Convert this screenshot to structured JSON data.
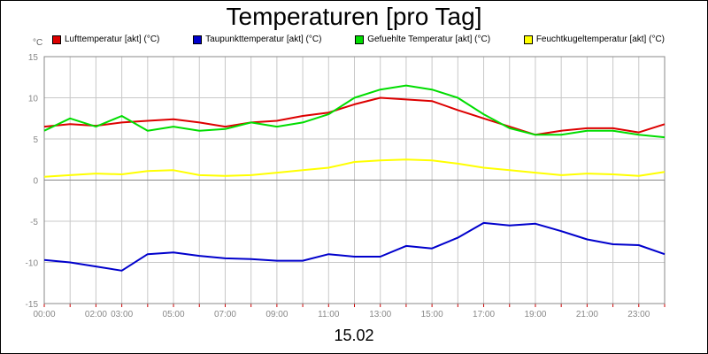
{
  "chart_data": {
    "type": "line",
    "title": "Temperaturen [pro Tag]",
    "unit": "°C",
    "xlabel": "15.02",
    "x_range_hours": [
      0,
      24
    ],
    "ylim": [
      -15,
      15
    ],
    "y_ticks": [
      15,
      10,
      5,
      0,
      -5,
      -10,
      -15
    ],
    "x_tick_labels": [
      {
        "h": 0,
        "label": "00:00"
      },
      {
        "h": 2,
        "label": "02:00"
      },
      {
        "h": 3,
        "label": "03:00"
      },
      {
        "h": 5,
        "label": "05:00"
      },
      {
        "h": 7,
        "label": "07:00"
      },
      {
        "h": 9,
        "label": "09:00"
      },
      {
        "h": 11,
        "label": "11:00"
      },
      {
        "h": 13,
        "label": "13:00"
      },
      {
        "h": 15,
        "label": "15:00"
      },
      {
        "h": 17,
        "label": "17:00"
      },
      {
        "h": 19,
        "label": "19:00"
      },
      {
        "h": 21,
        "label": "21:00"
      },
      {
        "h": 23,
        "label": "23:00"
      }
    ],
    "series": [
      {
        "name": "Lufttemperatur [akt] (°C)",
        "color": "#dd0000",
        "x": [
          0,
          1,
          2,
          3,
          4,
          5,
          6,
          7,
          8,
          9,
          10,
          11,
          12,
          13,
          14,
          15,
          16,
          17,
          18,
          19,
          20,
          21,
          22,
          23,
          24
        ],
        "values": [
          6.5,
          6.8,
          6.6,
          7.0,
          7.2,
          7.4,
          7.0,
          6.5,
          7.0,
          7.2,
          7.8,
          8.2,
          9.2,
          10.0,
          9.8,
          9.6,
          8.5,
          7.5,
          6.5,
          5.5,
          6.0,
          6.3,
          6.3,
          5.8,
          6.8
        ]
      },
      {
        "name": "Taupunkttemperatur [akt] (°C)",
        "color": "#0000cc",
        "x": [
          0,
          1,
          2,
          3,
          4,
          5,
          6,
          7,
          8,
          9,
          10,
          11,
          12,
          13,
          14,
          15,
          16,
          17,
          18,
          19,
          20,
          21,
          22,
          23,
          24
        ],
        "values": [
          -9.7,
          -10.0,
          -10.5,
          -11.0,
          -9.0,
          -8.8,
          -9.2,
          -9.5,
          -9.6,
          -9.8,
          -9.8,
          -9.0,
          -9.3,
          -9.3,
          -8.0,
          -8.3,
          -7.0,
          -5.2,
          -5.5,
          -5.3,
          -6.2,
          -7.2,
          -7.8,
          -7.9,
          -9.0
        ]
      },
      {
        "name": "Gefuehlte Temperatur [akt] (°C)",
        "color": "#00dd00",
        "x": [
          0,
          1,
          2,
          3,
          4,
          5,
          6,
          7,
          8,
          9,
          10,
          11,
          12,
          13,
          14,
          15,
          16,
          17,
          18,
          19,
          20,
          21,
          22,
          23,
          24
        ],
        "values": [
          6.0,
          7.5,
          6.5,
          7.8,
          6.0,
          6.5,
          6.0,
          6.2,
          7.0,
          6.5,
          7.0,
          8.0,
          10.0,
          11.0,
          11.5,
          11.0,
          10.0,
          8.0,
          6.3,
          5.5,
          5.5,
          6.0,
          6.0,
          5.5,
          5.2
        ]
      },
      {
        "name": "Feuchtkugeltemperatur [akt] (°C)",
        "color": "#ffff00",
        "x": [
          0,
          1,
          2,
          3,
          4,
          5,
          6,
          7,
          8,
          9,
          10,
          11,
          12,
          13,
          14,
          15,
          16,
          17,
          18,
          19,
          20,
          21,
          22,
          23,
          24
        ],
        "values": [
          0.4,
          0.6,
          0.8,
          0.7,
          1.1,
          1.2,
          0.6,
          0.5,
          0.6,
          0.9,
          1.2,
          1.5,
          2.2,
          2.4,
          2.5,
          2.4,
          2.0,
          1.5,
          1.2,
          0.9,
          0.6,
          0.8,
          0.7,
          0.5,
          1.0
        ]
      }
    ]
  }
}
